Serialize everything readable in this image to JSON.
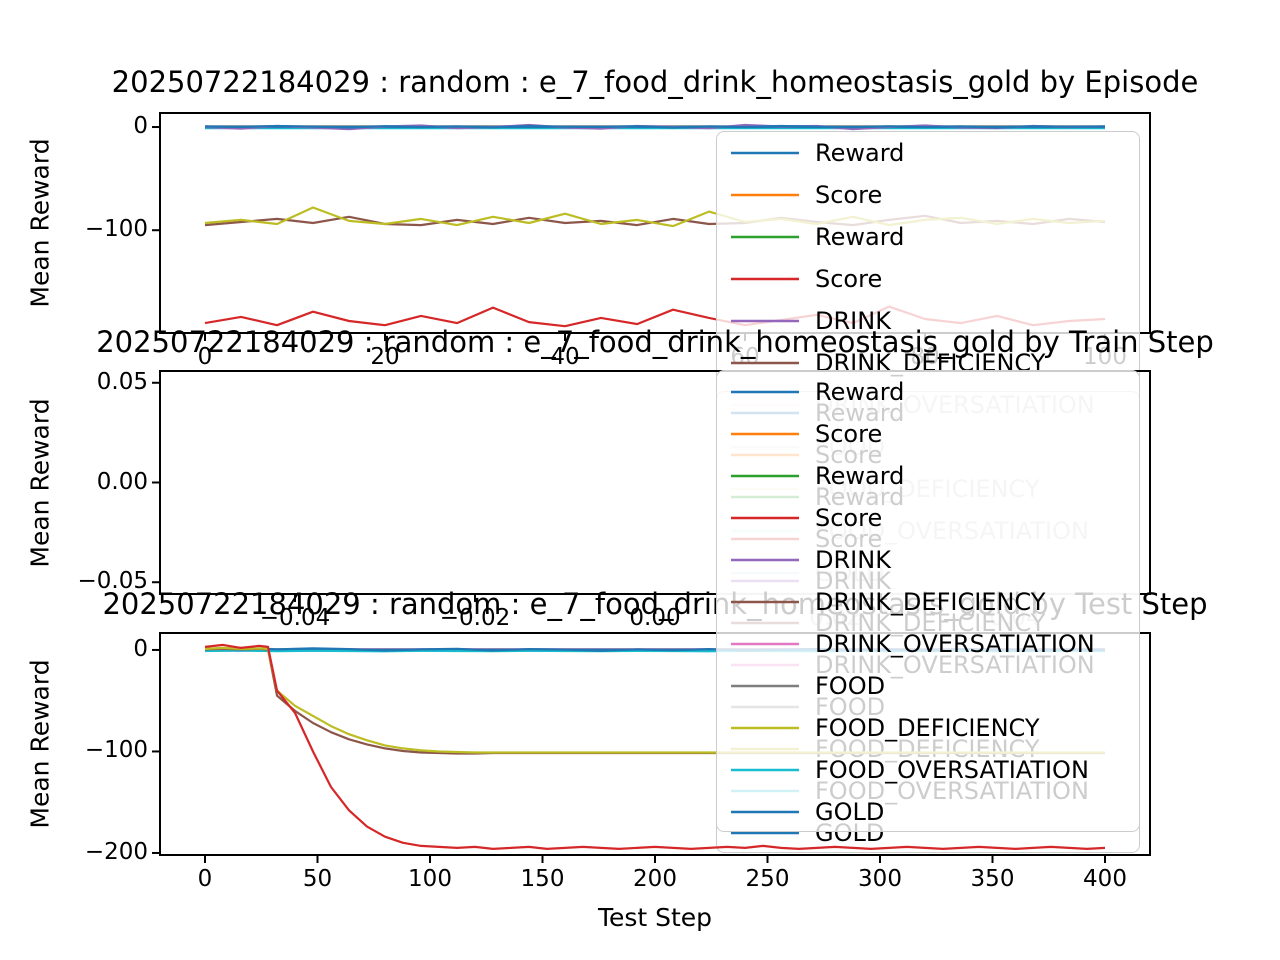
{
  "figure": {
    "background": "#ffffff"
  },
  "legend": {
    "entries": [
      {
        "label": "Reward",
        "color": "#1f77b4"
      },
      {
        "label": "Score",
        "color": "#ff7f0e"
      },
      {
        "label": "Reward",
        "color": "#2ca02c"
      },
      {
        "label": "Score",
        "color": "#d62728"
      },
      {
        "label": "DRINK",
        "color": "#9467bd"
      },
      {
        "label": "DRINK_DEFICIENCY",
        "color": "#8c564b"
      },
      {
        "label": "DRINK_OVERSATIATION",
        "color": "#e377c2"
      },
      {
        "label": "FOOD",
        "color": "#7f7f7f"
      },
      {
        "label": "FOOD_DEFICIENCY",
        "color": "#bcbd22"
      },
      {
        "label": "FOOD_OVERSATIATION",
        "color": "#17becf"
      },
      {
        "label": "GOLD",
        "color": "#1f77b4"
      }
    ]
  },
  "chart_data": [
    {
      "type": "line",
      "title": "20250722184029 : random : e_7_food_drink_homeostasis_gold by Episode",
      "ylabel": "Mean Reward",
      "xlabel": "",
      "grid": false,
      "legend_position": "upper right, overflowing below axes",
      "xlim": [
        -5,
        105
      ],
      "ylim": [
        -199.6,
        13.6
      ],
      "xtick_vals": [
        0,
        20,
        40,
        60,
        80,
        100
      ],
      "xtick_labels": [
        "0",
        "20",
        "40",
        "60",
        "80",
        "100"
      ],
      "ytick_vals": [
        0,
        -100
      ],
      "ytick_labels": [
        "0",
        "−100"
      ],
      "series": [
        {
          "name": "Score",
          "color": "#ff7f0e",
          "x": [
            0,
            100
          ],
          "y": [
            -0.3,
            -0.3
          ]
        },
        {
          "name": "Reward",
          "color": "#2ca02c",
          "x": [
            0,
            100
          ],
          "y": [
            0.3,
            0.3
          ]
        },
        {
          "name": "DRINK_OVERSATIATION",
          "color": "#e377c2",
          "x": [
            0,
            100
          ],
          "y": [
            -0.6,
            -0.6
          ]
        },
        {
          "name": "FOOD",
          "color": "#7f7f7f",
          "x": [
            0,
            100
          ],
          "y": [
            0.6,
            0.6
          ]
        },
        {
          "name": "FOOD_OVERSATIATION",
          "color": "#17becf",
          "x": [
            0,
            100
          ],
          "y": [
            -1,
            -1
          ]
        },
        {
          "name": "GOLD",
          "color": "#1f77b4",
          "x": [
            0,
            100
          ],
          "y": [
            0,
            0
          ]
        },
        {
          "name": "DRINK",
          "color": "#9467bd",
          "x": [
            0,
            4,
            8,
            12,
            16,
            20,
            24,
            28,
            32,
            36,
            40,
            44,
            48,
            52,
            56,
            60,
            64,
            68,
            72,
            76,
            80,
            84,
            88,
            92,
            96,
            100
          ],
          "y": [
            0,
            -1.5,
            1,
            -0.5,
            -2,
            0.5,
            1.5,
            -1,
            0,
            2,
            -0.5,
            -1.5,
            1,
            0,
            -1,
            2,
            0.5,
            1,
            -2,
            0,
            1.5,
            -0.5,
            -1,
            1,
            0,
            0.5
          ]
        },
        {
          "name": "Reward",
          "color": "#1f77b4",
          "x": [
            0,
            4,
            8,
            12,
            16,
            20,
            24,
            28,
            32,
            36,
            40,
            44,
            48,
            52,
            56,
            60,
            64,
            68,
            72,
            76,
            80,
            84,
            88,
            92,
            96,
            100
          ],
          "y": [
            0.5,
            0,
            1,
            0.3,
            -0.5,
            0.8,
            0,
            0.5,
            -0.3,
            1,
            0.2,
            0,
            0.8,
            -0.5,
            0.5,
            0,
            1,
            0.3,
            -0.3,
            0.6,
            0,
            0.5,
            -0.5,
            0.8,
            0.2,
            0.5
          ]
        },
        {
          "name": "DRINK_DEFICIENCY",
          "color": "#8c564b",
          "x": [
            0,
            4,
            8,
            12,
            16,
            20,
            24,
            28,
            32,
            36,
            40,
            44,
            48,
            52,
            56,
            60,
            64,
            68,
            72,
            76,
            80,
            84,
            88,
            92,
            96,
            100
          ],
          "y": [
            -95,
            -92,
            -89,
            -93,
            -87,
            -94,
            -95,
            -90,
            -94,
            -88,
            -93,
            -91,
            -95,
            -89,
            -94,
            -93,
            -88,
            -92,
            -95,
            -90,
            -86,
            -93,
            -91,
            -94,
            -89,
            -92
          ]
        },
        {
          "name": "FOOD_DEFICIENCY",
          "color": "#bcbd22",
          "x": [
            0,
            4,
            8,
            12,
            16,
            20,
            24,
            28,
            32,
            36,
            40,
            44,
            48,
            52,
            56,
            60,
            64,
            68,
            72,
            76,
            80,
            84,
            88,
            92,
            96,
            100
          ],
          "y": [
            -93,
            -90,
            -94,
            -78,
            -91,
            -94,
            -89,
            -95,
            -87,
            -93,
            -84,
            -94,
            -90,
            -96,
            -82,
            -92,
            -89,
            -94,
            -87,
            -95,
            -90,
            -88,
            -94,
            -89,
            -93,
            -91
          ]
        },
        {
          "name": "Score",
          "color": "#d62728",
          "x": [
            0,
            4,
            8,
            12,
            16,
            20,
            24,
            28,
            32,
            36,
            40,
            44,
            48,
            52,
            56,
            60,
            64,
            68,
            72,
            76,
            80,
            84,
            88,
            92,
            96,
            100
          ],
          "y": [
            -190,
            -184,
            -192,
            -179,
            -188,
            -192,
            -183,
            -190,
            -175,
            -189,
            -193,
            -185,
            -191,
            -177,
            -185,
            -192,
            -187,
            -182,
            -190,
            -174,
            -186,
            -190,
            -183,
            -192,
            -188,
            -186
          ]
        }
      ]
    },
    {
      "type": "line",
      "title": "20250722184029 : random : e_7_food_drink_homeostasis_gold by Train Step",
      "ylabel": "Mean Reward",
      "xlabel": "",
      "grid": false,
      "legend_position": "upper right, overflowing below axes",
      "xlim": [
        -0.055,
        0.055
      ],
      "ylim": [
        -0.0559,
        0.0559
      ],
      "xtick_vals": [
        -0.04,
        -0.02,
        0,
        0.02,
        0.04
      ],
      "xtick_labels": [
        "−0.04",
        "−0.02",
        "0.00",
        "0.02",
        "0.04"
      ],
      "ytick_vals": [
        0.05,
        0,
        -0.05
      ],
      "ytick_labels": [
        "0.05",
        "0.00",
        "−0.05"
      ],
      "series": []
    },
    {
      "type": "line",
      "title": "20250722184029 : random : e_7_food_drink_homeostasis_gold by Test Step",
      "ylabel": "Mean Reward",
      "xlabel": "Test Step",
      "grid": false,
      "legend_position": "upper right, overflowing above axes",
      "xlim": [
        -20,
        420
      ],
      "ylim": [
        -202,
        16.7
      ],
      "xtick_vals": [
        0,
        50,
        100,
        150,
        200,
        250,
        300,
        350,
        400
      ],
      "xtick_labels": [
        "0",
        "50",
        "100",
        "150",
        "200",
        "250",
        "300",
        "350",
        "400"
      ],
      "ytick_vals": [
        0,
        -100,
        -200
      ],
      "ytick_labels": [
        "0",
        "−100",
        "−200"
      ],
      "series": [
        {
          "name": "Score",
          "color": "#ff7f0e",
          "x": [
            0,
            400
          ],
          "y": [
            -0.4,
            -0.4
          ]
        },
        {
          "name": "Reward",
          "color": "#2ca02c",
          "x": [
            0,
            400
          ],
          "y": [
            0.4,
            0.4
          ]
        },
        {
          "name": "DRINK",
          "color": "#9467bd",
          "x": [
            0,
            400
          ],
          "y": [
            -0.7,
            -0.7
          ]
        },
        {
          "name": "DRINK_OVERSATIATION",
          "color": "#e377c2",
          "x": [
            0,
            400
          ],
          "y": [
            0.7,
            0.7
          ]
        },
        {
          "name": "FOOD",
          "color": "#7f7f7f",
          "x": [
            0,
            400
          ],
          "y": [
            0.3,
            0.3
          ]
        },
        {
          "name": "GOLD",
          "color": "#1f77b4",
          "x": [
            0,
            400
          ],
          "y": [
            0.2,
            0.2
          ]
        },
        {
          "name": "FOOD_OVERSATIATION",
          "color": "#17becf",
          "x": [
            0,
            16,
            32,
            48,
            64,
            80,
            96,
            112,
            128,
            144,
            160,
            176,
            192,
            208,
            224,
            240,
            256,
            272,
            288,
            304,
            320,
            336,
            352,
            368,
            384,
            400
          ],
          "y": [
            -1,
            -0.5,
            -1.2,
            -0.8,
            -1,
            -1.3,
            -0.8,
            -1,
            -1.2,
            -0.8,
            -1,
            -1.2,
            -0.9,
            -1,
            -1.3,
            -0.8,
            -1,
            -1.1,
            -0.9,
            -1.2,
            -1,
            -0.8,
            -1.2,
            -1,
            -0.9,
            -1
          ]
        },
        {
          "name": "Reward",
          "color": "#1f77b4",
          "x": [
            0,
            16,
            32,
            48,
            64,
            80,
            96,
            112,
            128,
            144,
            160,
            176,
            192,
            208,
            224,
            240,
            256,
            272,
            288,
            304,
            320,
            336,
            352,
            368,
            384,
            400
          ],
          "y": [
            1,
            2,
            0.5,
            1.5,
            0.8,
            -0.5,
            0.5,
            1,
            -0.5,
            0.8,
            0.3,
            -0.8,
            0.5,
            -0.3,
            0.8,
            -0.5,
            0.3,
            0.8,
            -0.3,
            0.5,
            -0.5,
            0.8,
            0.3,
            -0.5,
            0.5,
            0
          ]
        },
        {
          "name": "DRINK_DEFICIENCY",
          "color": "#8c564b",
          "x": [
            0,
            8,
            16,
            24,
            28,
            32,
            40,
            48,
            56,
            64,
            72,
            80,
            88,
            96,
            104,
            112,
            120,
            128,
            136,
            144,
            152,
            160,
            176,
            192,
            208,
            224,
            240,
            256,
            272,
            288,
            304,
            320,
            336,
            352,
            368,
            384,
            400
          ],
          "y": [
            0.5,
            1,
            0.5,
            1,
            0.5,
            -45,
            -60,
            -72,
            -81,
            -88,
            -93,
            -97,
            -99.5,
            -101,
            -101.5,
            -102,
            -102,
            -101.5,
            -101.5,
            -101.5,
            -101.5,
            -101.5,
            -101.5,
            -101.5,
            -101.5,
            -101.5,
            -101.5,
            -101.5,
            -101.5,
            -101.5,
            -101.5,
            -101.5,
            -101.5,
            -101.5,
            -101.5,
            -101.5,
            -101.5
          ]
        },
        {
          "name": "FOOD_DEFICIENCY",
          "color": "#bcbd22",
          "x": [
            0,
            8,
            16,
            24,
            28,
            32,
            40,
            48,
            56,
            64,
            72,
            80,
            88,
            96,
            104,
            112,
            120,
            128,
            136,
            144,
            152,
            160,
            176,
            192,
            208,
            224,
            240,
            256,
            272,
            288,
            304,
            320,
            336,
            352,
            368,
            384,
            400
          ],
          "y": [
            1,
            2,
            1,
            1.5,
            1,
            -40,
            -55,
            -65,
            -75,
            -83,
            -89,
            -94,
            -97,
            -99,
            -100,
            -100.5,
            -101,
            -101,
            -101,
            -101,
            -101,
            -101,
            -101,
            -101,
            -101,
            -101,
            -101,
            -101,
            -101,
            -101,
            -101,
            -101,
            -101,
            -101,
            -101,
            -101,
            -101
          ]
        },
        {
          "name": "Score",
          "color": "#d62728",
          "x": [
            0,
            8,
            16,
            24,
            28,
            32,
            40,
            48,
            56,
            64,
            72,
            80,
            88,
            96,
            104,
            112,
            120,
            128,
            136,
            144,
            152,
            160,
            168,
            176,
            184,
            192,
            200,
            208,
            216,
            224,
            232,
            240,
            248,
            256,
            264,
            272,
            280,
            288,
            296,
            304,
            312,
            320,
            328,
            336,
            344,
            352,
            360,
            368,
            376,
            384,
            392,
            400
          ],
          "y": [
            3,
            5,
            2,
            4,
            3,
            -40,
            -62,
            -100,
            -135,
            -158,
            -174,
            -184,
            -190,
            -193,
            -194,
            -195,
            -194,
            -196,
            -195,
            -194,
            -196,
            -195,
            -194,
            -195,
            -196,
            -195,
            -194,
            -195,
            -196,
            -195,
            -194,
            -195,
            -193,
            -195,
            -196,
            -195,
            -194,
            -195,
            -196,
            -195,
            -194,
            -195,
            -196,
            -195,
            -194,
            -195,
            -196,
            -195,
            -194,
            -195,
            -196,
            -195
          ]
        }
      ]
    }
  ]
}
